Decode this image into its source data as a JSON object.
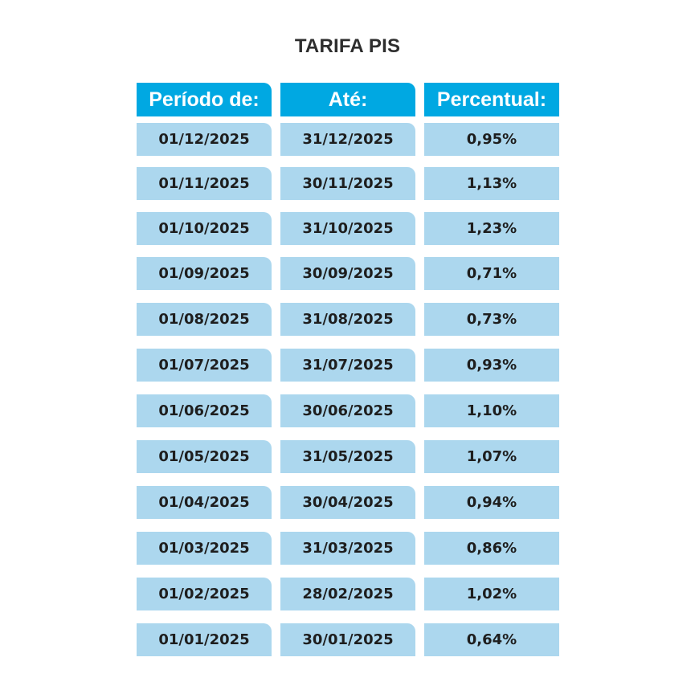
{
  "title": "TARIFA PIS",
  "headers": [
    "Período de:",
    "Até:",
    "Percentual:"
  ],
  "rows": [
    [
      "01/12/2025",
      "31/12/2025",
      "0,95%"
    ],
    [
      "01/11/2025",
      "30/11/2025",
      "1,13%"
    ],
    [
      "01/10/2025",
      "31/10/2025",
      "1,23%"
    ],
    [
      "01/09/2025",
      "30/09/2025",
      "0,71%"
    ],
    [
      "01/08/2025",
      "31/08/2025",
      "0,73%"
    ],
    [
      "01/07/2025",
      "31/07/2025",
      "0,93%"
    ],
    [
      "01/06/2025",
      "30/06/2025",
      "1,10%"
    ],
    [
      "01/05/2025",
      "31/05/2025",
      "1,07%"
    ],
    [
      "01/04/2025",
      "30/04/2025",
      "0,94%"
    ],
    [
      "01/03/2025",
      "31/03/2025",
      "0,86%"
    ],
    [
      "01/02/2025",
      "28/02/2025",
      "1,02%"
    ],
    [
      "01/01/2025",
      "30/01/2025",
      "0,64%"
    ]
  ],
  "colors": {
    "header_bg": "#00a8e2",
    "cell_bg": "#acd7ee",
    "title_text": "#2e2e2e"
  }
}
